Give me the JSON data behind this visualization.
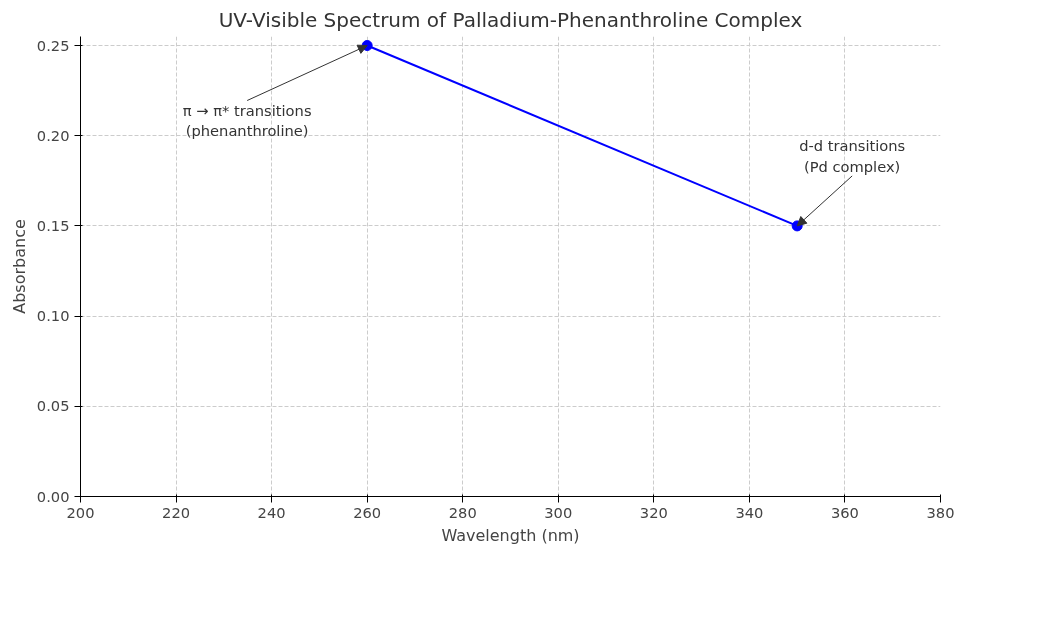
{
  "chart_data": {
    "type": "line",
    "title": "UV-Visible Spectrum of Palladium-Phenanthroline Complex",
    "xlabel": "Wavelength (nm)",
    "ylabel": "Absorbance",
    "x": [
      260,
      350
    ],
    "series": [
      {
        "color": "#0000ff",
        "values": [
          0.25,
          0.15
        ]
      }
    ],
    "xlim": [
      200,
      380
    ],
    "xticks": [
      200,
      220,
      240,
      260,
      280,
      300,
      320,
      340,
      360,
      380
    ],
    "ylim": [
      0,
      0.255
    ],
    "yticks": [
      {
        "value": 0,
        "label": "0.00"
      },
      {
        "value": 0.05,
        "label": "0.05"
      },
      {
        "value": 0.1,
        "label": "0.10"
      },
      {
        "value": 0.15,
        "label": "0.15"
      },
      {
        "value": 0.2,
        "label": "0.20"
      },
      {
        "value": 0.25,
        "label": "0.25"
      }
    ],
    "grid": true,
    "marker": "circle",
    "line_style": "solid",
    "annotations": [
      {
        "text": "π → π* transitions\n(phenanthroline)",
        "x": 260,
        "y": 0.25
      },
      {
        "text": "d-d transitions\n(Pd complex)",
        "x": 350,
        "y": 0.15
      }
    ]
  }
}
